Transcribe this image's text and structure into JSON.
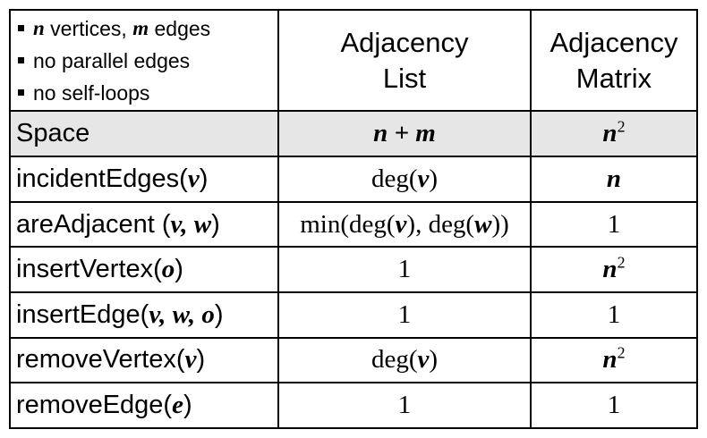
{
  "assumptions": [
    {
      "var": "n",
      "text": " vertices, "
    },
    {
      "var": "m",
      "text": " edges"
    },
    {
      "text": "no parallel edges"
    },
    {
      "text": "no self-loops"
    }
  ],
  "columns": {
    "list_line1": "Adjacency",
    "list_line2": "List",
    "matrix_line1": "Adjacency",
    "matrix_line2": "Matrix"
  },
  "rows": [
    {
      "op": "Space",
      "list": "n + m",
      "matrix": "n",
      "matrix_sup": "2"
    },
    {
      "op": "incidentEdges(",
      "op_args": "v",
      "op_close": ")",
      "list_pre": "deg(",
      "list_arg": "v",
      "list_post": ")",
      "matrix": "n"
    },
    {
      "op": "areAdjacent (",
      "op_args": "v, w",
      "op_close": ")",
      "list_pre": "min(deg(",
      "list_arg": "v",
      "list_mid": "), deg(",
      "list_arg2": "w",
      "list_post": "))",
      "matrix": "1"
    },
    {
      "op": "insertVertex(",
      "op_args": "o",
      "op_close": ")",
      "list": "1",
      "matrix": "n",
      "matrix_sup": "2"
    },
    {
      "op": "insertEdge(",
      "op_args": "v, w, o",
      "op_close": ")",
      "list": "1",
      "matrix": "1"
    },
    {
      "op": "removeVertex(",
      "op_args": "v",
      "op_close": ")",
      "list_pre": "deg(",
      "list_arg": "v",
      "list_post": ")",
      "matrix": "n",
      "matrix_sup": "2"
    },
    {
      "op": "removeEdge(",
      "op_args": "e",
      "op_close": ")",
      "list": "1",
      "matrix": "1"
    }
  ]
}
